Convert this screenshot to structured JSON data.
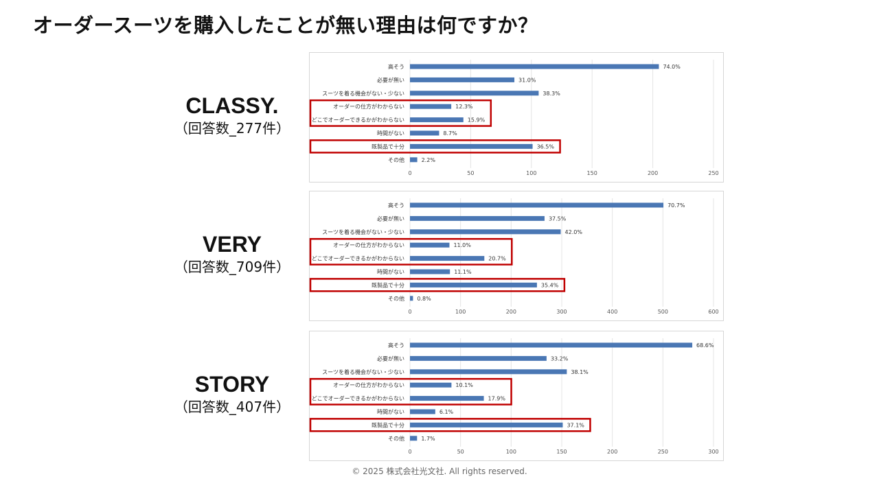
{
  "page": {
    "title": "オーダースーツを購入したことが無い理由は何ですか？",
    "copyright": "© 2025 株式会社光文社. All rights reserved."
  },
  "colors": {
    "bar": "#4a77b4",
    "highlight": "#c00000",
    "grid": "#e4e4e4"
  },
  "charts": [
    {
      "name": "CLASSY.",
      "count_label": "（回答数_277件）"
    },
    {
      "name": "VERY",
      "count_label": "（回答数_709件）"
    },
    {
      "name": "STORY",
      "count_label": "（回答数_407件）"
    }
  ],
  "chart_data": [
    {
      "type": "bar",
      "orientation": "horizontal",
      "title": "",
      "categories": [
        "高そう",
        "必要が無い",
        "スーツを着る機会がない・少ない",
        "オーダーの仕方がわからない",
        "どこでオーダーできるかがわからない",
        "時間がない",
        "既製品で十分",
        "その他"
      ],
      "values": [
        205,
        86,
        106,
        34,
        44,
        24,
        101,
        6
      ],
      "data_labels": [
        "74.0%",
        "31.0%",
        "38.3%",
        "12.3%",
        "15.9%",
        "8.7%",
        "36.5%",
        "2.2%"
      ],
      "xlim": [
        0,
        250
      ],
      "xticks": [
        0,
        50,
        100,
        150,
        200,
        250
      ],
      "grid": true,
      "highlight_groups": [
        [
          3,
          4
        ],
        [
          6
        ]
      ]
    },
    {
      "type": "bar",
      "orientation": "horizontal",
      "title": "",
      "categories": [
        "高そう",
        "必要が無い",
        "スーツを着る機会がない・少ない",
        "オーダーの仕方がわからない",
        "どこでオーダーできるかがわからない",
        "時間がない",
        "既製品で十分",
        "その他"
      ],
      "values": [
        501,
        266,
        298,
        78,
        147,
        79,
        251,
        6
      ],
      "data_labels": [
        "70.7%",
        "37.5%",
        "42.0%",
        "11.0%",
        "20.7%",
        "11.1%",
        "35.4%",
        "0.8%"
      ],
      "xlim": [
        0,
        600
      ],
      "xticks": [
        0,
        100,
        200,
        300,
        400,
        500,
        600
      ],
      "grid": true,
      "highlight_groups": [
        [
          3,
          4
        ],
        [
          6
        ]
      ]
    },
    {
      "type": "bar",
      "orientation": "horizontal",
      "title": "",
      "categories": [
        "高そう",
        "必要が無い",
        "スーツを着る機会がない・少ない",
        "オーダーの仕方がわからない",
        "どこでオーダーできるかがわからない",
        "時間がない",
        "既製品で十分",
        "その他"
      ],
      "values": [
        279,
        135,
        155,
        41,
        73,
        25,
        151,
        7
      ],
      "data_labels": [
        "68.6%",
        "33.2%",
        "38.1%",
        "10.1%",
        "17.9%",
        "6.1%",
        "37.1%",
        "1.7%"
      ],
      "xlim": [
        0,
        300
      ],
      "xticks": [
        0,
        50,
        100,
        150,
        200,
        250,
        300
      ],
      "grid": true,
      "highlight_groups": [
        [
          3,
          4
        ],
        [
          6
        ]
      ]
    }
  ]
}
